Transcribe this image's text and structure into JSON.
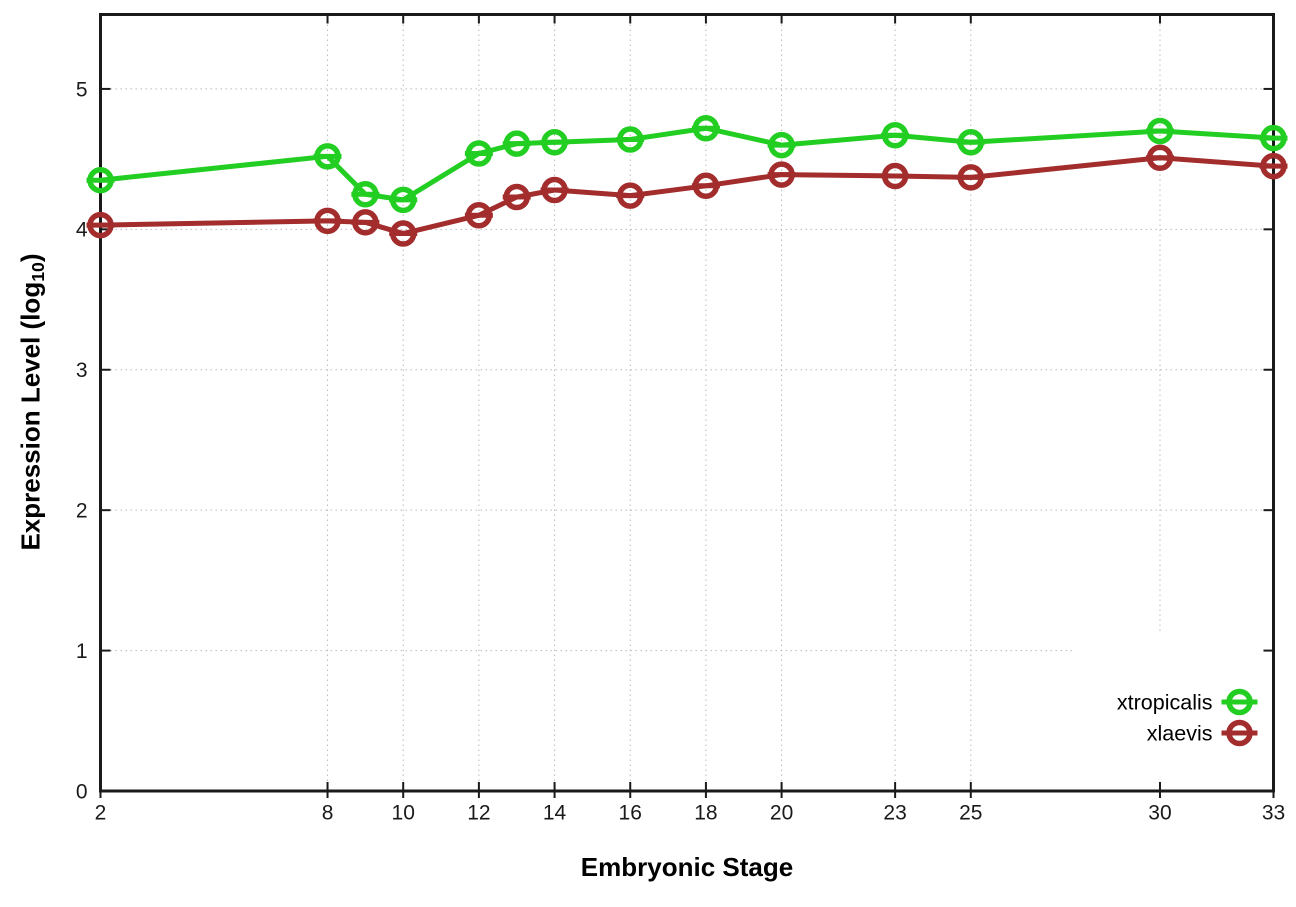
{
  "figure": {
    "background": "#ffffff",
    "xlabel": "Embryonic Stage",
    "ylabel_main": "Expression Level (log",
    "ylabel_sub": "10",
    "ylabel_close": ")"
  },
  "chart_data": {
    "type": "line",
    "title": "",
    "xlabel": "Embryonic Stage",
    "ylabel": "Expression Level (log10)",
    "x": [
      2,
      8,
      9,
      10,
      12,
      13,
      14,
      16,
      18,
      20,
      23,
      25,
      30,
      33
    ],
    "series": [
      {
        "name": "xtropicalis",
        "color": "#23ce23",
        "marker": "open-circle-with-bar",
        "values": [
          4.35,
          4.52,
          4.25,
          4.21,
          4.54,
          4.61,
          4.62,
          4.64,
          4.72,
          4.6,
          4.67,
          4.62,
          4.7,
          4.65
        ]
      },
      {
        "name": "xlaevis",
        "color": "#a32c2c",
        "marker": "open-circle-with-bar",
        "values": [
          4.03,
          4.06,
          4.05,
          3.97,
          4.1,
          4.23,
          4.28,
          4.24,
          4.31,
          4.39,
          4.38,
          4.37,
          4.51,
          4.45
        ]
      }
    ],
    "xticks": [
      2,
      8,
      10,
      12,
      14,
      16,
      18,
      20,
      23,
      25,
      30,
      33
    ],
    "yticks": [
      0,
      1,
      2,
      3,
      4,
      5
    ],
    "xlim": [
      2,
      33
    ],
    "ylim": [
      0,
      5.53
    ],
    "grid": true,
    "legend_position": "bottom-right",
    "legend_opaque": true,
    "axis_color": "#1a1a1a",
    "tick_label_color": "#1a1a1a",
    "grid_color": "#bbbbbb",
    "line_width": 5
  }
}
